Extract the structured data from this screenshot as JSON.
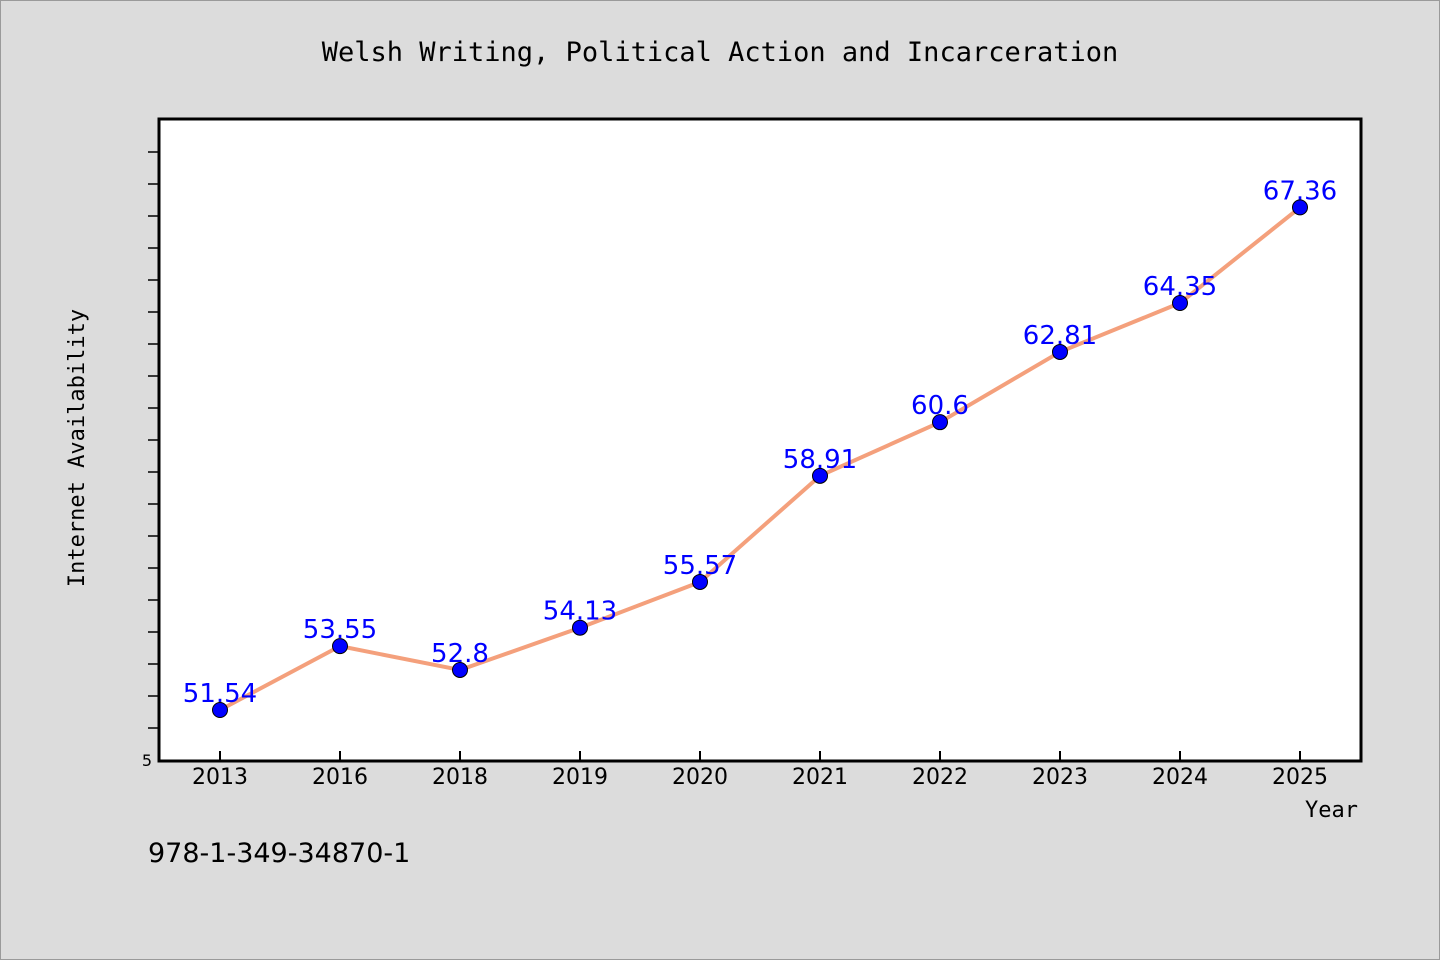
{
  "chart_data": {
    "type": "line",
    "title": "Welsh Writing, Political Action and Incarceration",
    "xlabel": "Year",
    "ylabel": "Internet Availability",
    "categories": [
      "2013",
      "2016",
      "2018",
      "2019",
      "2020",
      "2021",
      "2022",
      "2023",
      "2024",
      "2025"
    ],
    "values": [
      51.54,
      53.55,
      52.8,
      54.13,
      55.57,
      58.91,
      60.6,
      62.81,
      64.35,
      67.36
    ],
    "data_labels": [
      "51.54",
      "53.55",
      "52.8",
      "54.13",
      "55.57",
      "58.91",
      "60.6",
      "62.81",
      "64.35",
      "67.36"
    ],
    "y_tick_labels": [
      "5"
    ],
    "grid": false,
    "legend": "none",
    "colors": {
      "line": "#f4a07c",
      "marker": "#0000ff",
      "label": "#0000ff",
      "background": "#dcdcdc",
      "plot_background": "#ffffff"
    }
  },
  "footer_text": "978-1-349-34870-1"
}
